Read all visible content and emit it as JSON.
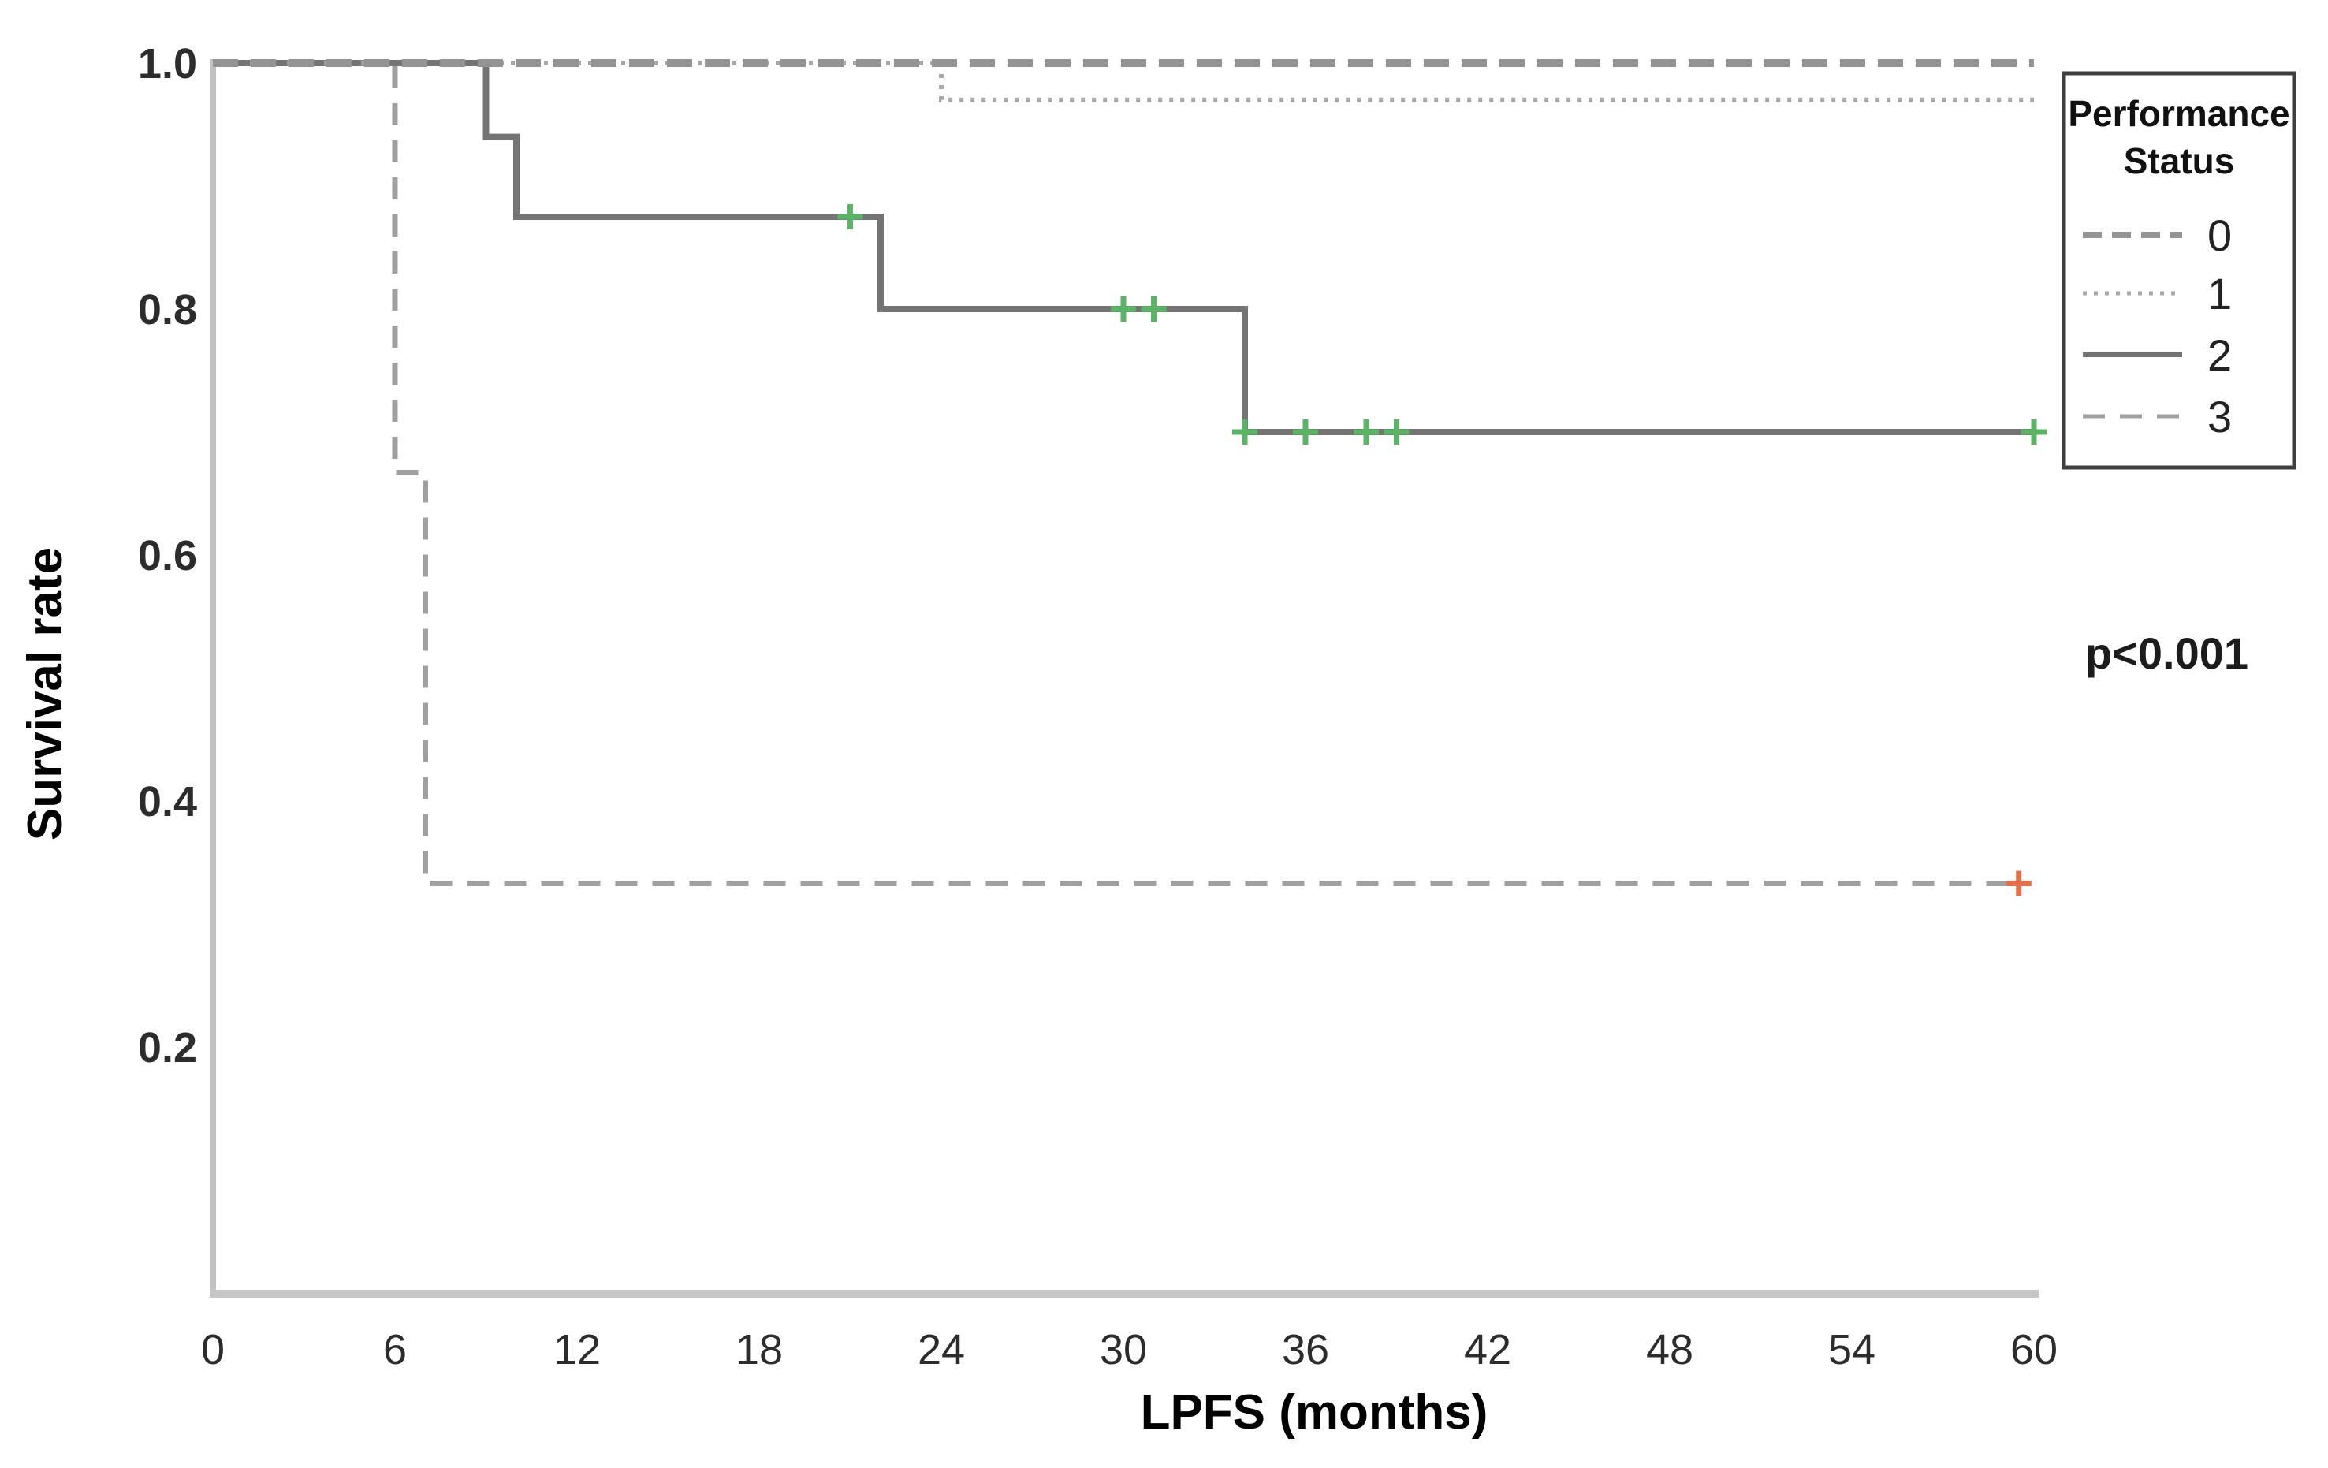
{
  "figure": {
    "ylabel": "Survival rate",
    "xlabel": "LPFS (months)",
    "annotation": "p<0.001"
  },
  "legend": {
    "title_line1": "Performance",
    "title_line2": "Status"
  },
  "chart_data": {
    "type": "line",
    "subtype": "kaplan-meier-step-survival",
    "title": "",
    "xlabel": "LPFS (months)",
    "ylabel": "Survival rate",
    "annotation": "p<0.001",
    "xlim": [
      0,
      60
    ],
    "ylim": [
      0,
      1.0
    ],
    "x_ticks": [
      "0",
      "6",
      "12",
      "18",
      "24",
      "30",
      "36",
      "42",
      "48",
      "54",
      "60"
    ],
    "y_ticks": [
      "1.0",
      "0.8",
      "0.6",
      "0.4",
      "0.2"
    ],
    "grid": false,
    "legend_title": "Performance Status",
    "legend_position": "outside-top-right",
    "axis_color": "#c2c2c2",
    "censor_mark": "plus",
    "series": [
      {
        "name": "0",
        "line_style": "long-dash",
        "color": "#949494",
        "censor_color": null,
        "points": [
          [
            0,
            1.0
          ],
          [
            60,
            1.0
          ]
        ],
        "censors": []
      },
      {
        "name": "1",
        "line_style": "dotted",
        "color": "#a8a8a8",
        "censor_color": null,
        "points": [
          [
            0,
            1.0
          ],
          [
            24,
            1.0
          ],
          [
            24,
            0.97
          ],
          [
            60,
            0.97
          ]
        ],
        "censors": []
      },
      {
        "name": "2",
        "line_style": "solid",
        "color": "#747474",
        "censor_color": "#5cb266",
        "points": [
          [
            0,
            1.0
          ],
          [
            9,
            1.0
          ],
          [
            9,
            0.94
          ],
          [
            10,
            0.94
          ],
          [
            10,
            0.875
          ],
          [
            22,
            0.875
          ],
          [
            22,
            0.8
          ],
          [
            34,
            0.8
          ],
          [
            34,
            0.7
          ],
          [
            60,
            0.7
          ]
        ],
        "censors": [
          [
            21,
            0.875
          ],
          [
            30,
            0.8
          ],
          [
            31,
            0.8
          ],
          [
            34,
            0.7
          ],
          [
            36,
            0.7
          ],
          [
            38,
            0.7
          ],
          [
            39,
            0.7
          ],
          [
            60,
            0.7
          ]
        ]
      },
      {
        "name": "3",
        "line_style": "dashed",
        "color": "#a0a0a0",
        "censor_color": "#e2704c",
        "points": [
          [
            0,
            1.0
          ],
          [
            6,
            1.0
          ],
          [
            6,
            0.667
          ],
          [
            7,
            0.667
          ],
          [
            7,
            0.333
          ],
          [
            59.5,
            0.333
          ]
        ],
        "censors": [
          [
            59.5,
            0.333
          ]
        ]
      }
    ]
  }
}
